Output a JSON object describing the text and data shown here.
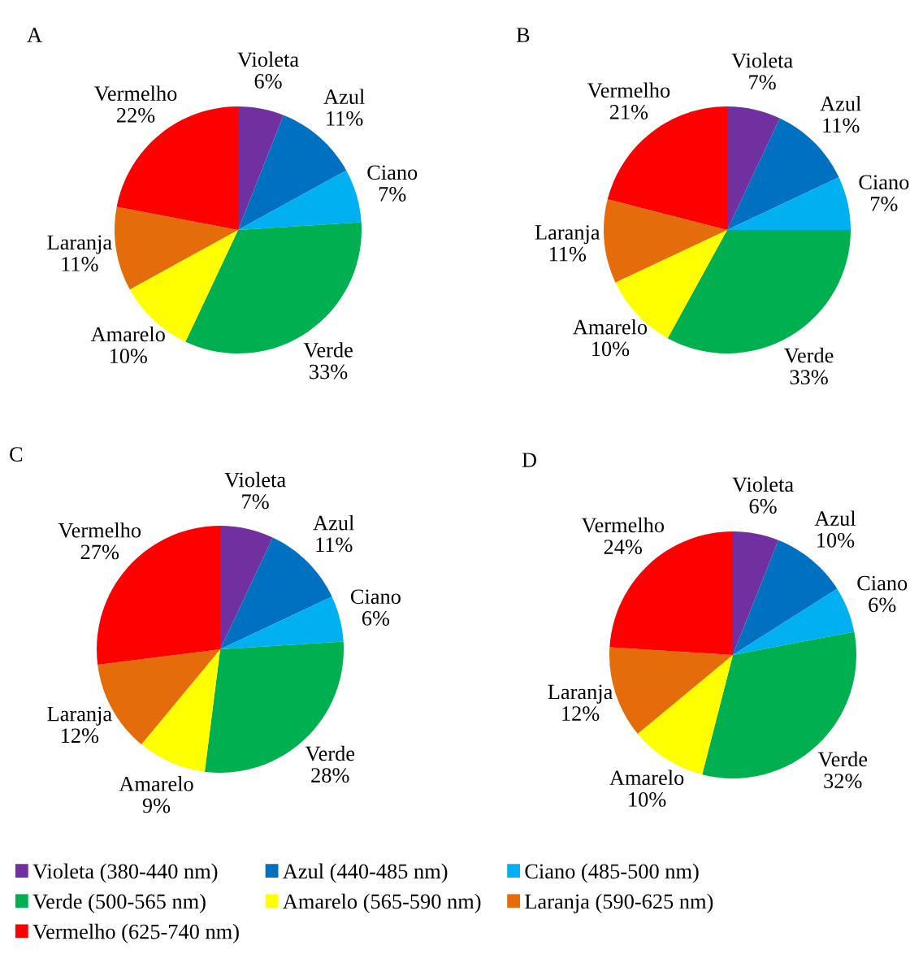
{
  "chart_data": [
    {
      "type": "pie",
      "title": "A",
      "categories": [
        "Violeta",
        "Azul",
        "Ciano",
        "Verde",
        "Amarelo",
        "Laranja",
        "Vermelho"
      ],
      "values": [
        6,
        11,
        7,
        33,
        10,
        11,
        22
      ],
      "value_labels": [
        "6%",
        "11%",
        "7%",
        "33%",
        "10%",
        "11%",
        "22%"
      ],
      "colors": [
        "#7030a0",
        "#0070c0",
        "#00b0f0",
        "#00b050",
        "#ffff00",
        "#e46c0a",
        "#ff0000"
      ]
    },
    {
      "type": "pie",
      "title": "B",
      "categories": [
        "Violeta",
        "Azul",
        "Ciano",
        "Verde",
        "Amarelo",
        "Laranja",
        "Vermelho"
      ],
      "values": [
        7,
        11,
        7,
        33,
        10,
        11,
        21
      ],
      "value_labels": [
        "7%",
        "11%",
        "7%",
        "33%",
        "10%",
        "11%",
        "21%"
      ],
      "colors": [
        "#7030a0",
        "#0070c0",
        "#00b0f0",
        "#00b050",
        "#ffff00",
        "#e46c0a",
        "#ff0000"
      ]
    },
    {
      "type": "pie",
      "title": "C",
      "categories": [
        "Violeta",
        "Azul",
        "Ciano",
        "Verde",
        "Amarelo",
        "Laranja",
        "Vermelho"
      ],
      "values": [
        7,
        11,
        6,
        28,
        9,
        12,
        27
      ],
      "value_labels": [
        "7%",
        "11%",
        "6%",
        "28%",
        "9%",
        "12%",
        "27%"
      ],
      "colors": [
        "#7030a0",
        "#0070c0",
        "#00b0f0",
        "#00b050",
        "#ffff00",
        "#e46c0a",
        "#ff0000"
      ]
    },
    {
      "type": "pie",
      "title": "D",
      "categories": [
        "Violeta",
        "Azul",
        "Ciano",
        "Verde",
        "Amarelo",
        "Laranja",
        "Vermelho"
      ],
      "values": [
        6,
        10,
        6,
        32,
        10,
        12,
        24
      ],
      "value_labels": [
        "6%",
        "10%",
        "6%",
        "32%",
        "10%",
        "12%",
        "24%"
      ],
      "colors": [
        "#7030a0",
        "#0070c0",
        "#00b0f0",
        "#00b050",
        "#ffff00",
        "#e46c0a",
        "#ff0000"
      ]
    },
    {
      "type": "other",
      "categories": [
        "Violeta (380-440 nm)",
        "Azul (440-485 nm)",
        "Ciano (485-500 nm)",
        "Verde (500-565 nm)",
        "Amarelo (565-590 nm)",
        "Laranja (590-625 nm)",
        "Vermelho (625-740 nm)"
      ],
      "colors": [
        "#7030a0",
        "#0070c0",
        "#00b0f0",
        "#00b050",
        "#ffff00",
        "#e46c0a",
        "#ff0000"
      ]
    }
  ]
}
